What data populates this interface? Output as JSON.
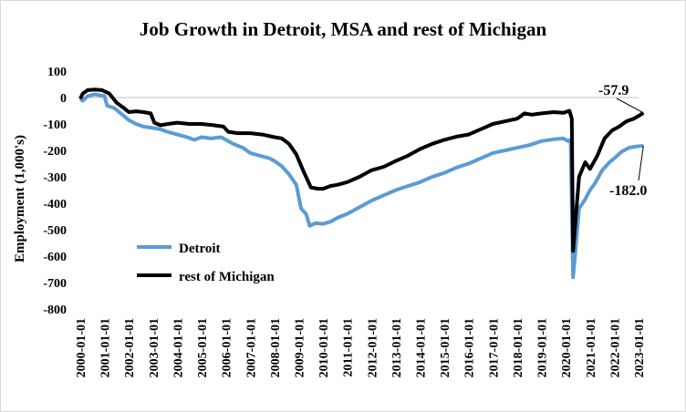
{
  "chart_data": {
    "type": "line",
    "title": "Job Growth in Detroit, MSA and rest of Michigan",
    "xlabel": "",
    "ylabel": "Employment (1,000's)",
    "ylim": [
      -800,
      100
    ],
    "yticks": [
      100,
      0,
      -100,
      -200,
      -300,
      -400,
      -500,
      -600,
      -700,
      -800
    ],
    "ytick_labels": [
      "100",
      "0",
      "-100",
      "-200",
      "-300",
      "-400",
      "-500",
      "-600",
      "-700",
      "-800"
    ],
    "x_tick_labels": [
      "2000-01-01",
      "2001-01-01",
      "2002-01-01",
      "2003-01-01",
      "2004-01-01",
      "2005-01-01",
      "2006-01-01",
      "2007-01-01",
      "2008-01-01",
      "2009-01-01",
      "2010-01-01",
      "2011-01-01",
      "2012-01-01",
      "2013-01-01",
      "2014-01-01",
      "2015-01-01",
      "2016-01-01",
      "2017-01-01",
      "2018-01-01",
      "2019-01-01",
      "2020-01-01",
      "2021-01-01",
      "2022-01-01",
      "2023-01-01"
    ],
    "series": [
      {
        "name": "Detroit",
        "color": "#5b9bd5",
        "points": [
          [
            2000.0,
            -5
          ],
          [
            2000.1,
            -12
          ],
          [
            2000.3,
            5
          ],
          [
            2000.6,
            12
          ],
          [
            2001.0,
            5
          ],
          [
            2001.1,
            -30
          ],
          [
            2001.4,
            -40
          ],
          [
            2001.8,
            -70
          ],
          [
            2002.0,
            -85
          ],
          [
            2002.3,
            -100
          ],
          [
            2002.6,
            -110
          ],
          [
            2003.0,
            -115
          ],
          [
            2003.3,
            -120
          ],
          [
            2003.6,
            -130
          ],
          [
            2004.0,
            -140
          ],
          [
            2004.4,
            -150
          ],
          [
            2004.7,
            -160
          ],
          [
            2005.0,
            -150
          ],
          [
            2005.4,
            -155
          ],
          [
            2005.8,
            -150
          ],
          [
            2006.0,
            -160
          ],
          [
            2006.3,
            -175
          ],
          [
            2006.7,
            -190
          ],
          [
            2007.0,
            -210
          ],
          [
            2007.4,
            -220
          ],
          [
            2007.8,
            -230
          ],
          [
            2008.0,
            -240
          ],
          [
            2008.3,
            -260
          ],
          [
            2008.6,
            -290
          ],
          [
            2008.9,
            -330
          ],
          [
            2009.1,
            -420
          ],
          [
            2009.3,
            -440
          ],
          [
            2009.45,
            -485
          ],
          [
            2009.7,
            -475
          ],
          [
            2010.0,
            -478
          ],
          [
            2010.3,
            -470
          ],
          [
            2010.6,
            -455
          ],
          [
            2011.0,
            -440
          ],
          [
            2011.5,
            -415
          ],
          [
            2012.0,
            -390
          ],
          [
            2012.5,
            -370
          ],
          [
            2013.0,
            -350
          ],
          [
            2013.5,
            -335
          ],
          [
            2014.0,
            -320
          ],
          [
            2014.5,
            -300
          ],
          [
            2015.0,
            -285
          ],
          [
            2015.5,
            -265
          ],
          [
            2016.0,
            -250
          ],
          [
            2016.5,
            -230
          ],
          [
            2017.0,
            -210
          ],
          [
            2017.5,
            -200
          ],
          [
            2018.0,
            -190
          ],
          [
            2018.5,
            -180
          ],
          [
            2019.0,
            -165
          ],
          [
            2019.5,
            -158
          ],
          [
            2019.9,
            -155
          ],
          [
            2020.1,
            -165
          ],
          [
            2020.2,
            -160
          ],
          [
            2020.3,
            -680
          ],
          [
            2020.4,
            -580
          ],
          [
            2020.55,
            -420
          ],
          [
            2020.8,
            -385
          ],
          [
            2021.0,
            -350
          ],
          [
            2021.2,
            -325
          ],
          [
            2021.5,
            -275
          ],
          [
            2021.8,
            -245
          ],
          [
            2022.0,
            -230
          ],
          [
            2022.3,
            -205
          ],
          [
            2022.6,
            -190
          ],
          [
            2022.9,
            -185
          ],
          [
            2023.2,
            -182
          ]
        ]
      },
      {
        "name": "rest of Michigan",
        "color": "#000000",
        "points": [
          [
            2000.0,
            -5
          ],
          [
            2000.1,
            15
          ],
          [
            2000.3,
            28
          ],
          [
            2000.6,
            30
          ],
          [
            2000.9,
            28
          ],
          [
            2001.2,
            15
          ],
          [
            2001.5,
            -20
          ],
          [
            2001.8,
            -40
          ],
          [
            2002.0,
            -55
          ],
          [
            2002.3,
            -52
          ],
          [
            2002.6,
            -55
          ],
          [
            2002.9,
            -60
          ],
          [
            2003.05,
            -95
          ],
          [
            2003.3,
            -105
          ],
          [
            2003.6,
            -100
          ],
          [
            2004.0,
            -95
          ],
          [
            2004.5,
            -100
          ],
          [
            2005.0,
            -100
          ],
          [
            2005.5,
            -105
          ],
          [
            2005.9,
            -110
          ],
          [
            2006.1,
            -130
          ],
          [
            2006.5,
            -135
          ],
          [
            2007.0,
            -135
          ],
          [
            2007.5,
            -140
          ],
          [
            2008.0,
            -150
          ],
          [
            2008.3,
            -155
          ],
          [
            2008.6,
            -175
          ],
          [
            2008.9,
            -215
          ],
          [
            2009.2,
            -280
          ],
          [
            2009.5,
            -340
          ],
          [
            2009.8,
            -345
          ],
          [
            2010.0,
            -345
          ],
          [
            2010.3,
            -335
          ],
          [
            2010.6,
            -330
          ],
          [
            2011.0,
            -320
          ],
          [
            2011.5,
            -300
          ],
          [
            2012.0,
            -275
          ],
          [
            2012.5,
            -262
          ],
          [
            2013.0,
            -240
          ],
          [
            2013.5,
            -220
          ],
          [
            2014.0,
            -195
          ],
          [
            2014.5,
            -175
          ],
          [
            2015.0,
            -160
          ],
          [
            2015.5,
            -148
          ],
          [
            2016.0,
            -140
          ],
          [
            2016.5,
            -120
          ],
          [
            2017.0,
            -100
          ],
          [
            2017.5,
            -90
          ],
          [
            2018.0,
            -80
          ],
          [
            2018.3,
            -60
          ],
          [
            2018.6,
            -65
          ],
          [
            2019.0,
            -60
          ],
          [
            2019.5,
            -55
          ],
          [
            2019.9,
            -58
          ],
          [
            2020.15,
            -50
          ],
          [
            2020.25,
            -80
          ],
          [
            2020.3,
            -580
          ],
          [
            2020.4,
            -470
          ],
          [
            2020.55,
            -300
          ],
          [
            2020.8,
            -245
          ],
          [
            2021.0,
            -270
          ],
          [
            2021.3,
            -220
          ],
          [
            2021.6,
            -155
          ],
          [
            2021.9,
            -125
          ],
          [
            2022.2,
            -110
          ],
          [
            2022.5,
            -90
          ],
          [
            2022.8,
            -80
          ],
          [
            2023.0,
            -70
          ],
          [
            2023.2,
            -57.9
          ]
        ]
      }
    ],
    "annotations": [
      {
        "text": "-57.9",
        "series": "rest of Michigan",
        "value": -57.9
      },
      {
        "text": "-182.0",
        "series": "Detroit",
        "value": -182.0
      }
    ],
    "legend": "left-inside"
  }
}
